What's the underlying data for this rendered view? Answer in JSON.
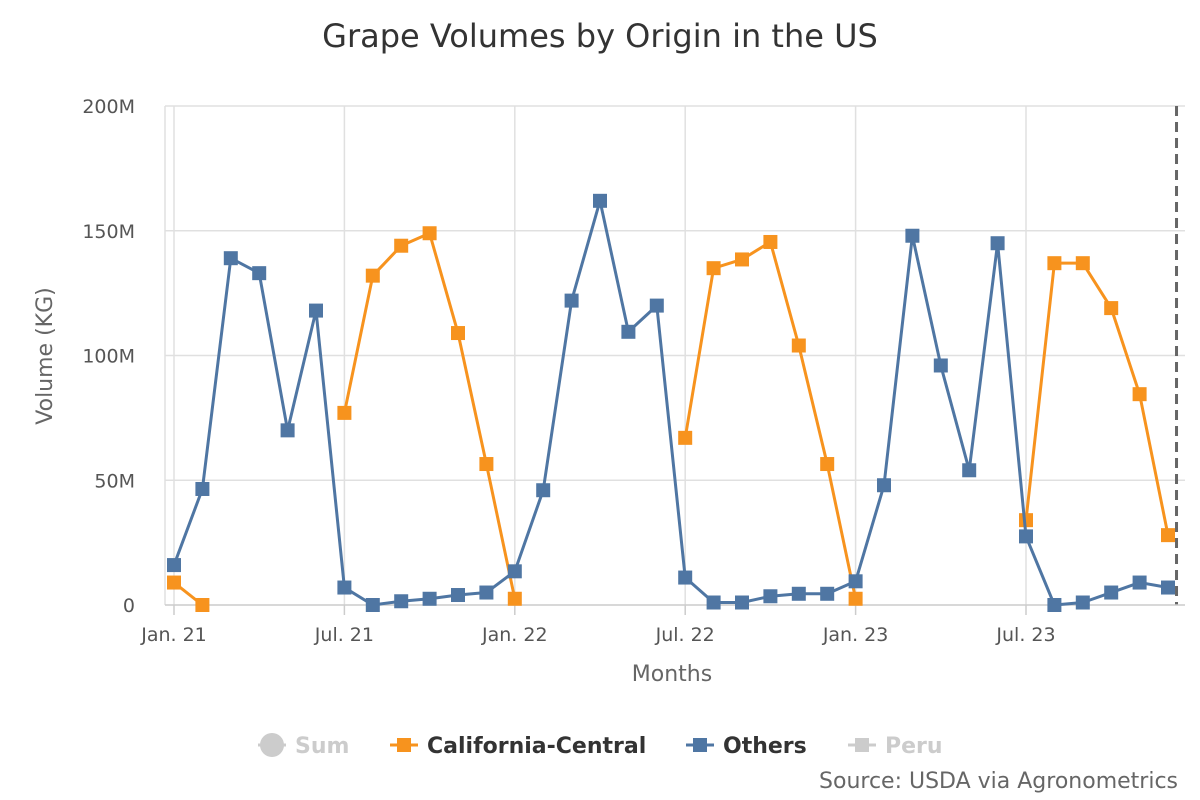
{
  "chart_data": {
    "type": "line",
    "title": "Grape Volumes by Origin in the US",
    "xlabel": "Months",
    "ylabel": "Volume (KG)",
    "ylim": [
      0,
      200000000
    ],
    "y_ticks": [
      {
        "value": 0,
        "label": "0"
      },
      {
        "value": 50000000,
        "label": "50M"
      },
      {
        "value": 100000000,
        "label": "100M"
      },
      {
        "value": 150000000,
        "label": "150M"
      },
      {
        "value": 200000000,
        "label": "200M"
      }
    ],
    "x_ticks": [
      {
        "index": 0,
        "label": "Jan. 21"
      },
      {
        "index": 6,
        "label": "Jul. 21"
      },
      {
        "index": 12,
        "label": "Jan. 22"
      },
      {
        "index": 18,
        "label": "Jul. 22"
      },
      {
        "index": 24,
        "label": "Jan. 23"
      },
      {
        "index": 30,
        "label": "Jul. 23"
      }
    ],
    "x_count": 36,
    "x_range": [
      0,
      35.3
    ],
    "series": [
      {
        "name": "California-Central",
        "color": "#f7931e",
        "visible": true,
        "values": [
          9000000,
          0,
          null,
          null,
          null,
          null,
          77000000,
          132000000,
          144000000,
          149000000,
          109000000,
          56500000,
          2500000,
          null,
          null,
          null,
          null,
          null,
          67000000,
          135000000,
          138500000,
          145500000,
          104000000,
          56500000,
          2500000,
          null,
          null,
          null,
          null,
          null,
          34000000,
          137000000,
          137000000,
          119000000,
          84500000,
          28000000
        ]
      },
      {
        "name": "Others",
        "color": "#4f76a3",
        "visible": true,
        "values": [
          16000000,
          46500000,
          139000000,
          133000000,
          70000000,
          118000000,
          7000000,
          0,
          1500000,
          2500000,
          4000000,
          5000000,
          13500000,
          46000000,
          122000000,
          162000000,
          109500000,
          120000000,
          11000000,
          1000000,
          1000000,
          3500000,
          4500000,
          4500000,
          9500000,
          48000000,
          148000000,
          96000000,
          54000000,
          145000000,
          27500000,
          0,
          1000000,
          5000000,
          9000000,
          7000000
        ]
      }
    ],
    "legend": {
      "position": "bottom",
      "items": [
        {
          "name": "Sum",
          "symbol": "circle",
          "color": "#cccccc",
          "visible": false
        },
        {
          "name": "California-Central",
          "symbol": "square",
          "color": "#f7931e",
          "visible": true
        },
        {
          "name": "Others",
          "symbol": "square",
          "color": "#4f76a3",
          "visible": true
        },
        {
          "name": "Peru",
          "symbol": "square",
          "color": "#cccccc",
          "visible": false
        }
      ]
    },
    "source": "Source: USDA via Agronometrics"
  }
}
